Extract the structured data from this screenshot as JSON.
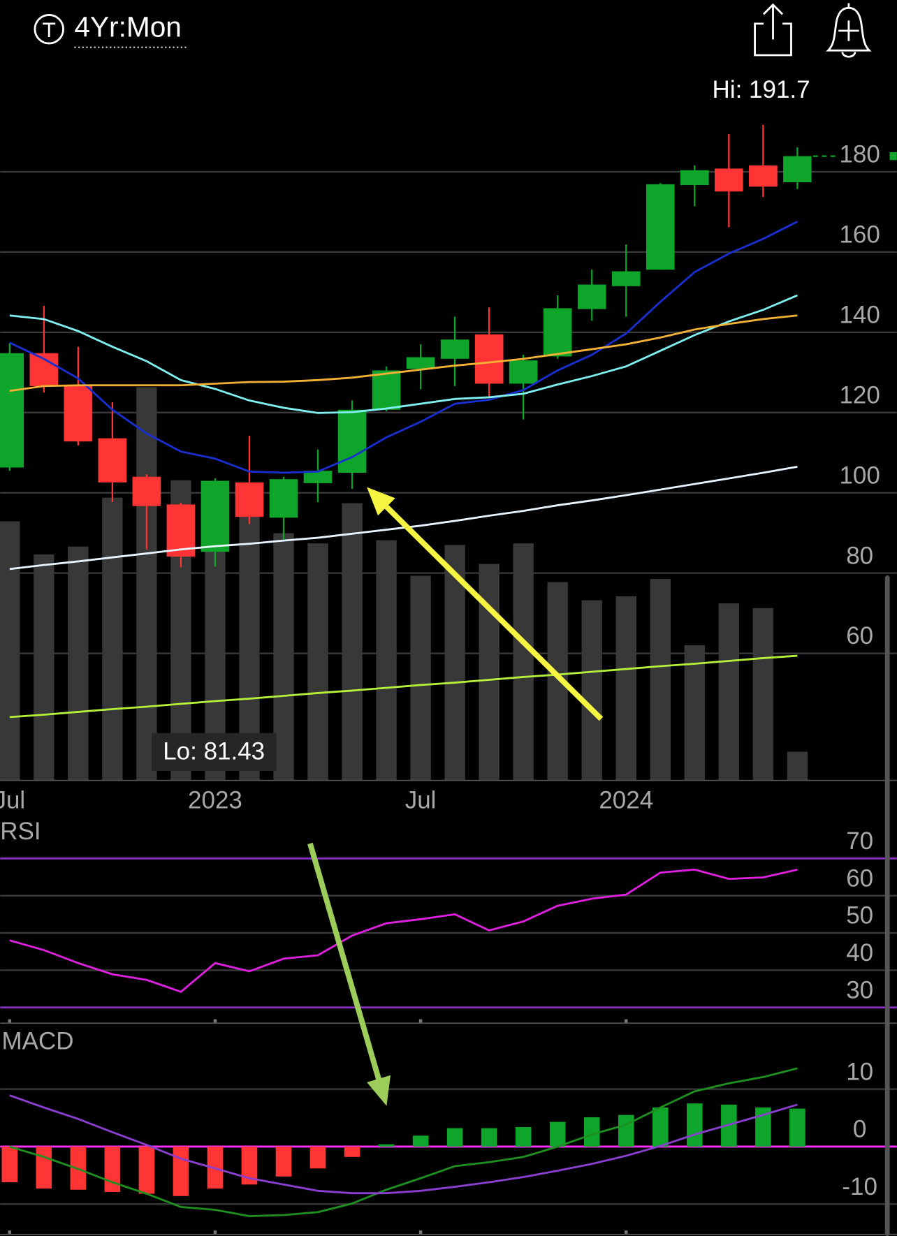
{
  "header": {
    "period": "4Yr:Mon"
  },
  "chart_data": [
    {
      "type": "candlestick",
      "categories": [
        "Jul",
        null,
        null,
        null,
        null,
        null,
        "2023",
        null,
        null,
        null,
        null,
        null,
        "Jul",
        null,
        null,
        null,
        null,
        null,
        "2024",
        null,
        null,
        null,
        null,
        null
      ],
      "open": [
        106.3,
        134.8,
        126.6,
        113.6,
        104,
        97.1,
        85.3,
        102.6,
        93.8,
        102.4,
        105,
        120.7,
        130.9,
        133.4,
        139.5,
        127.2,
        134,
        145.8,
        151.5,
        155.6,
        176.7,
        180.8,
        181.6,
        177.4
      ],
      "high": [
        137.4,
        146.6,
        136.4,
        122.6,
        104.6,
        97.5,
        103.6,
        114.2,
        104,
        110.8,
        123,
        131.5,
        137,
        143.9,
        146.2,
        134.4,
        149.2,
        155.6,
        161.9,
        177.2,
        181.6,
        189.4,
        191.7,
        186.1
      ],
      "low": [
        105.5,
        125,
        111.8,
        97.7,
        85.9,
        81.43,
        81.6,
        92.2,
        88.3,
        97.7,
        101,
        120.3,
        125.8,
        126.6,
        124,
        118.3,
        133.4,
        142.9,
        143.9,
        155.6,
        171.4,
        166.2,
        173.7,
        175.7
      ],
      "close": [
        134.8,
        126.6,
        112.8,
        102.6,
        96.7,
        84.1,
        103,
        94,
        103.4,
        105.5,
        120.7,
        130.5,
        133.8,
        138.2,
        127.2,
        133,
        146,
        151.9,
        155.2,
        176.9,
        180.4,
        175.1,
        176.3,
        183.9
      ],
      "up_color": "#0ea52a",
      "down_color": "#ff3535",
      "series": [
        {
          "color": "#1a2fd0",
          "values": [
            137.4,
            133.4,
            128.5,
            120.7,
            114.8,
            110.3,
            108.5,
            105.3,
            105,
            105.3,
            108.9,
            113.8,
            117.7,
            122.2,
            123.2,
            125.6,
            130.5,
            134.4,
            139.7,
            147.6,
            155,
            159.6,
            163.3,
            167.6
          ]
        },
        {
          "color": "#7ff0f0",
          "values": [
            144.2,
            143.3,
            140.3,
            136.4,
            132.8,
            128.1,
            125.9,
            123,
            121.2,
            119.9,
            120.1,
            121,
            122.2,
            123.4,
            123.8,
            124.7,
            127,
            129.1,
            131.5,
            135.4,
            139.3,
            142.7,
            145.6,
            149.2
          ]
        },
        {
          "color": "#f2b134",
          "values": [
            125.4,
            126.6,
            126.8,
            126.8,
            126.8,
            126.8,
            127.2,
            127.6,
            127.7,
            128.1,
            128.7,
            129.7,
            130.7,
            131.7,
            132.5,
            133.4,
            134.6,
            135.8,
            137,
            138.7,
            140.7,
            142.1,
            143.3,
            144.2
          ]
        },
        {
          "color": "#e8f4ff",
          "values": [
            81,
            82,
            82.9,
            83.9,
            84.9,
            85.9,
            86.7,
            87.3,
            88.1,
            88.8,
            89.8,
            90.8,
            91.8,
            93,
            94.3,
            95.5,
            96.9,
            98.1,
            99.4,
            100.8,
            102.2,
            103.6,
            105,
            106.5
          ]
        },
        {
          "color": "#b6f03a",
          "values": [
            44.1,
            44.7,
            45.4,
            46.1,
            46.7,
            47.4,
            48.1,
            48.7,
            49.4,
            50.1,
            50.7,
            51.4,
            52.1,
            52.7,
            53.4,
            54.1,
            54.7,
            55.4,
            56.1,
            56.8,
            57.4,
            58.1,
            58.8,
            59.4
          ]
        }
      ],
      "volume": {
        "color": "#383838",
        "values": [
          328,
          286,
          296,
          358,
          498,
          380,
          378,
          338,
          313,
          300,
          351,
          304,
          259,
          298,
          274,
          300,
          251,
          228,
          233,
          255,
          171,
          224,
          218,
          36
        ]
      },
      "vlim": [
        0,
        900
      ],
      "ylim": [
        28,
        205
      ],
      "yticks": [
        180,
        160,
        140,
        120,
        100,
        80,
        60
      ],
      "annotations": [
        "Hi: 191.7",
        "Lo: 81.43"
      ]
    },
    {
      "type": "line",
      "title": "RSI",
      "series": [
        {
          "color": "#e020e0",
          "values": [
            48,
            45.4,
            41.9,
            38.9,
            37.4,
            34.2,
            41.9,
            39.7,
            43.1,
            44,
            49.3,
            52.6,
            53.7,
            55,
            50.7,
            53.1,
            57.3,
            59.2,
            60.3,
            66.2,
            67,
            64.5,
            64.9,
            67
          ]
        }
      ],
      "levels": [
        70,
        30
      ],
      "level_color": "#8b2fc9",
      "ylim": [
        26,
        79
      ],
      "yticks": [
        70,
        60,
        50,
        40,
        30
      ]
    },
    {
      "type": "macd",
      "title": "MACD",
      "values": [
        -6.2,
        -7.3,
        -7.5,
        -7.9,
        -8.2,
        -8.6,
        -7.3,
        -6.6,
        -5.2,
        -3.8,
        -1.8,
        0.4,
        1.9,
        3.2,
        3.2,
        3.4,
        4.3,
        5.1,
        5.5,
        6.8,
        7.5,
        7.3,
        6.8,
        6.6
      ],
      "up_color": "#0ea52a",
      "down_color": "#ff3535",
      "zero_line_color": "#ff30ff",
      "series": [
        {
          "color": "#1f8f1f",
          "values": [
            0,
            -1.8,
            -3.9,
            -6.2,
            -8.2,
            -10.5,
            -11,
            -12.1,
            -11.9,
            -11.4,
            -9.9,
            -7.5,
            -5.5,
            -3.4,
            -2.7,
            -1.8,
            0,
            2.1,
            3.8,
            6.8,
            9.6,
            11,
            12.1,
            13.6
          ]
        },
        {
          "color": "#8a3fd0",
          "values": [
            8.9,
            6.8,
            4.8,
            2.5,
            0.3,
            -2.1,
            -3.8,
            -5.5,
            -6.6,
            -7.7,
            -8.1,
            -8.1,
            -7.7,
            -7,
            -6.2,
            -5.3,
            -4.2,
            -3,
            -1.6,
            0.1,
            2.1,
            3.8,
            5.5,
            7.3
          ]
        }
      ],
      "ylim": [
        -15,
        20.5
      ],
      "yticks": [
        10,
        0,
        -10
      ]
    }
  ]
}
